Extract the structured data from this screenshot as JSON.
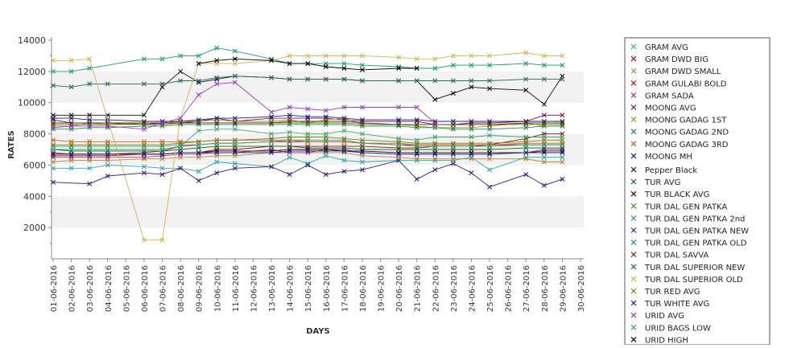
{
  "chart_data": {
    "type": "line",
    "xlabel": "DAYS",
    "ylabel": "RATES",
    "ylim": [
      0,
      14000
    ],
    "yticks": [
      2000,
      4000,
      6000,
      8000,
      10000,
      12000,
      14000
    ],
    "grid": "alternating horizontal bands",
    "legend_position": "right",
    "x": [
      "01-06-2016",
      "02-06-2016",
      "03-06-2016",
      "04-06-2016",
      "05-06-2016",
      "06-06-2016",
      "07-06-2016",
      "08-06-2016",
      "09-06-2016",
      "10-06-2016",
      "11-06-2016",
      "12-06-2016",
      "13-06-2016",
      "14-06-2016",
      "15-06-2016",
      "16-06-2016",
      "17-06-2016",
      "18-06-2016",
      "19-06-2016",
      "20-06-2016",
      "21-06-2016",
      "22-06-2016",
      "23-06-2016",
      "24-06-2016",
      "25-06-2016",
      "26-06-2016",
      "27-06-2016",
      "28-06-2016",
      "29-06-2016",
      "30-06-2016"
    ],
    "series": [
      {
        "name": "GRAM AVG",
        "color": "#2ba7a7",
        "values": [
          5800,
          5800,
          5800,
          6000,
          null,
          5900,
          5800,
          5800,
          5600,
          6200,
          6100,
          null,
          5900,
          6500,
          6100,
          6600,
          6300,
          6200,
          null,
          6300,
          6300,
          6300,
          6300,
          6500,
          5700,
          null,
          6500,
          6500,
          6500,
          null
        ]
      },
      {
        "name": "GRAM DWD BIG",
        "color": "#8b1a1a",
        "values": [
          6600,
          6600,
          6600,
          6600,
          null,
          6700,
          6700,
          6800,
          6800,
          7000,
          7000,
          null,
          7200,
          7200,
          7200,
          7200,
          7200,
          7200,
          null,
          7100,
          7100,
          7200,
          7200,
          7200,
          7300,
          null,
          7700,
          8000,
          8000,
          null
        ]
      },
      {
        "name": "GRAM DWD SMALL",
        "color": "#b08a3e",
        "values": [
          6200,
          6300,
          6300,
          6300,
          null,
          6400,
          6400,
          6500,
          6500,
          6600,
          6600,
          null,
          6800,
          6800,
          6800,
          6800,
          6800,
          6600,
          null,
          6500,
          6400,
          6400,
          6400,
          6400,
          6400,
          null,
          6400,
          6200,
          6200,
          null
        ]
      },
      {
        "name": "GRAM GULABI BOLD",
        "color": "#cc1111",
        "values": [
          6800,
          6700,
          6700,
          6700,
          null,
          6800,
          6900,
          7200,
          7300,
          7400,
          7400,
          null,
          7500,
          7500,
          7500,
          7500,
          7500,
          7400,
          null,
          7300,
          7300,
          7300,
          7300,
          7300,
          7300,
          null,
          7300,
          7300,
          7300,
          null
        ]
      },
      {
        "name": "GRAM SADA",
        "color": "#b03a6a",
        "values": [
          6500,
          6500,
          6500,
          6500,
          null,
          6500,
          6600,
          6700,
          6700,
          6800,
          6800,
          null,
          7000,
          6800,
          6800,
          7000,
          7000,
          6800,
          null,
          6700,
          6700,
          6700,
          6700,
          6700,
          6700,
          null,
          6800,
          7000,
          7000,
          null
        ]
      },
      {
        "name": "MOONG AVG",
        "color": "#7b0c6b",
        "values": [
          8900,
          8700,
          8700,
          8700,
          null,
          8600,
          8700,
          8700,
          8800,
          9000,
          8800,
          null,
          9000,
          9000,
          9000,
          9000,
          8900,
          8800,
          null,
          8800,
          8800,
          8600,
          8600,
          8700,
          8700,
          null,
          8800,
          9200,
          9200,
          null
        ]
      },
      {
        "name": "MOONG GADAG 1ST",
        "color": "#9a9a1a",
        "values": [
          8500,
          8500,
          8700,
          8600,
          null,
          8700,
          8700,
          8800,
          8800,
          8900,
          8800,
          null,
          8800,
          8900,
          8700,
          8900,
          9000,
          8600,
          null,
          8600,
          8500,
          8400,
          8400,
          8400,
          8500,
          null,
          8700,
          8500,
          8500,
          null
        ]
      },
      {
        "name": "MOONG GADAG 2ND",
        "color": "#1a8a5a",
        "values": [
          8300,
          8300,
          8400,
          8400,
          null,
          8500,
          8500,
          8600,
          8600,
          8600,
          8600,
          null,
          8600,
          8600,
          8600,
          8600,
          8600,
          8500,
          null,
          8500,
          8400,
          8400,
          8300,
          8300,
          8300,
          null,
          8400,
          8500,
          8500,
          null
        ]
      },
      {
        "name": "MOONG GADAG 3RD",
        "color": "#c7661a",
        "values": [
          7600,
          7500,
          7500,
          7500,
          null,
          7500,
          7500,
          7500,
          7500,
          7600,
          7600,
          null,
          7600,
          7600,
          7500,
          7500,
          7500,
          7400,
          null,
          7400,
          7300,
          7300,
          7300,
          7300,
          7300,
          null,
          7400,
          7400,
          7400,
          null
        ]
      },
      {
        "name": "MOONG MH",
        "color": "#1a237e",
        "values": [
          9000,
          9000,
          8900,
          8900,
          null,
          8800,
          8800,
          8800,
          8900,
          9000,
          9000,
          null,
          9100,
          9200,
          9100,
          9100,
          9000,
          8900,
          null,
          8900,
          8900,
          8800,
          8800,
          8800,
          8800,
          null,
          8800,
          8800,
          8800,
          null
        ]
      },
      {
        "name": "Pepper Black",
        "color": "#111111",
        "values": [
          9200,
          9200,
          9200,
          9200,
          null,
          9200,
          11000,
          12000,
          11300,
          11500,
          11700,
          null,
          11600,
          11500,
          11500,
          11500,
          11500,
          11400,
          null,
          11400,
          11400,
          10200,
          10600,
          11000,
          10900,
          null,
          10800,
          9900,
          11700,
          null
        ]
      },
      {
        "name": "TUR AVG",
        "color": "#1a6b1a",
        "values": [
          7000,
          6900,
          6900,
          6900,
          null,
          6900,
          6900,
          7000,
          7100,
          7200,
          7200,
          null,
          7200,
          7200,
          7100,
          7100,
          7100,
          7000,
          null,
          7000,
          7000,
          7000,
          7000,
          7000,
          7000,
          null,
          7100,
          7100,
          7100,
          null
        ]
      },
      {
        "name": "TUR BLACK AVG",
        "color": "#3a0808",
        "values": [
          6700,
          6700,
          6700,
          6700,
          null,
          6700,
          6700,
          6800,
          6800,
          6900,
          6900,
          null,
          6900,
          7000,
          7000,
          7000,
          6900,
          6900,
          null,
          6800,
          6800,
          6800,
          6800,
          6800,
          6800,
          null,
          6800,
          6800,
          6800,
          null
        ]
      },
      {
        "name": "TUR DAL GEN PATKA",
        "color": "#6b7a1a",
        "values": [
          8600,
          8600,
          8600,
          8600,
          null,
          8600,
          8600,
          8700,
          8700,
          8700,
          8700,
          null,
          8700,
          8700,
          8700,
          8700,
          8700,
          8600,
          null,
          8600,
          8600,
          8600,
          8600,
          8600,
          8600,
          null,
          8600,
          8600,
          8600,
          null
        ]
      },
      {
        "name": "TUR DAL GEN PATKA 2nd",
        "color": "#2aa58a",
        "values": [
          7200,
          7200,
          7200,
          7200,
          null,
          7200,
          7200,
          7300,
          7300,
          7400,
          7400,
          null,
          7500,
          7600,
          7600,
          7600,
          7600,
          7400,
          null,
          7300,
          7200,
          7200,
          7200,
          7200,
          7200,
          null,
          7300,
          7300,
          7300,
          null
        ]
      },
      {
        "name": "TUR DAL GEN PATKA NEW",
        "color": "#1a2aa5",
        "values": [
          6700,
          6700,
          6700,
          6700,
          null,
          6700,
          6700,
          6800,
          6800,
          6800,
          6800,
          null,
          6800,
          6900,
          6900,
          6900,
          6900,
          6800,
          null,
          6700,
          6700,
          6700,
          6700,
          6700,
          6700,
          null,
          6800,
          6900,
          6900,
          null
        ]
      },
      {
        "name": "TUR DAL GEN PATKA OLD",
        "color": "#1a9a7a",
        "values": [
          12000,
          12000,
          12200,
          null,
          null,
          12800,
          12800,
          13000,
          13000,
          13500,
          13300,
          null,
          12800,
          12500,
          12500,
          12500,
          12500,
          12400,
          null,
          12300,
          12200,
          12200,
          12400,
          12400,
          12400,
          null,
          12500,
          12400,
          12400,
          null
        ]
      },
      {
        "name": "TUR DAL SAVVA",
        "color": "#5a3a1a",
        "values": [
          8700,
          8700,
          8700,
          8700,
          null,
          8700,
          8700,
          8700,
          8700,
          8700,
          8700,
          null,
          8700,
          8800,
          8800,
          8800,
          8800,
          8700,
          null,
          8600,
          8600,
          8600,
          8600,
          8600,
          8600,
          null,
          8700,
          8700,
          8700,
          null
        ]
      },
      {
        "name": "TUR DAL SUPERIOR NEW",
        "color": "#2a6a5a",
        "values": [
          11100,
          11000,
          11200,
          11200,
          null,
          11200,
          11200,
          11400,
          11400,
          11600,
          11700,
          null,
          11600,
          11500,
          11500,
          11500,
          11500,
          11400,
          null,
          11400,
          11400,
          11400,
          11400,
          11400,
          11400,
          null,
          11500,
          11500,
          11500,
          null
        ]
      },
      {
        "name": "TUR DAL SUPERIOR OLD",
        "color": "#d4b34a",
        "values": [
          12700,
          12700,
          12800,
          null,
          null,
          1200,
          1200,
          9000,
          12500,
          12500,
          12500,
          null,
          12700,
          13000,
          13000,
          13000,
          13000,
          13000,
          null,
          12900,
          12800,
          12800,
          13000,
          13000,
          13000,
          null,
          13200,
          13000,
          13000,
          null
        ]
      },
      {
        "name": "TUR RED AVG",
        "color": "#8a7a1a",
        "values": [
          7300,
          7300,
          7300,
          7300,
          null,
          7300,
          7300,
          7400,
          7500,
          7600,
          7600,
          null,
          7700,
          7800,
          7800,
          7800,
          7700,
          7600,
          null,
          7500,
          7400,
          7400,
          7400,
          7400,
          7400,
          null,
          7500,
          7600,
          7600,
          null
        ]
      },
      {
        "name": "TUR WHITE AVG",
        "color": "#3a1a8a",
        "values": [
          4900,
          null,
          4800,
          5300,
          null,
          5500,
          5400,
          5800,
          5000,
          5500,
          5800,
          null,
          5900,
          5400,
          6000,
          5400,
          5600,
          5700,
          null,
          6300,
          5100,
          5700,
          6100,
          5500,
          4600,
          null,
          5400,
          4700,
          5100,
          null
        ]
      },
      {
        "name": "URID AVG",
        "color": "#9a3ac7",
        "values": [
          8400,
          8500,
          8500,
          8500,
          null,
          8300,
          8700,
          9000,
          10500,
          11200,
          11300,
          null,
          9400,
          9700,
          9600,
          9500,
          9700,
          9700,
          null,
          9700,
          9700,
          8700,
          null,
          null,
          null,
          null,
          null,
          null,
          null,
          null
        ]
      },
      {
        "name": "URID BAGS LOW",
        "color": "#3aa56a",
        "values": [
          7000,
          7000,
          7000,
          7000,
          null,
          7000,
          7000,
          7200,
          8200,
          8300,
          8300,
          null,
          8000,
          8100,
          8000,
          8000,
          8200,
          8000,
          null,
          7700,
          7600,
          7800,
          null,
          7800,
          7900,
          null,
          7800,
          7800,
          7800,
          null
        ]
      },
      {
        "name": "URID HIGH",
        "color": "#000000",
        "values": [
          null,
          null,
          null,
          null,
          null,
          null,
          null,
          null,
          12500,
          12700,
          12800,
          null,
          12700,
          12500,
          12500,
          12300,
          12200,
          12100,
          null,
          12200,
          12200,
          null,
          null,
          null,
          null,
          null,
          null,
          null,
          null,
          null
        ]
      }
    ]
  }
}
